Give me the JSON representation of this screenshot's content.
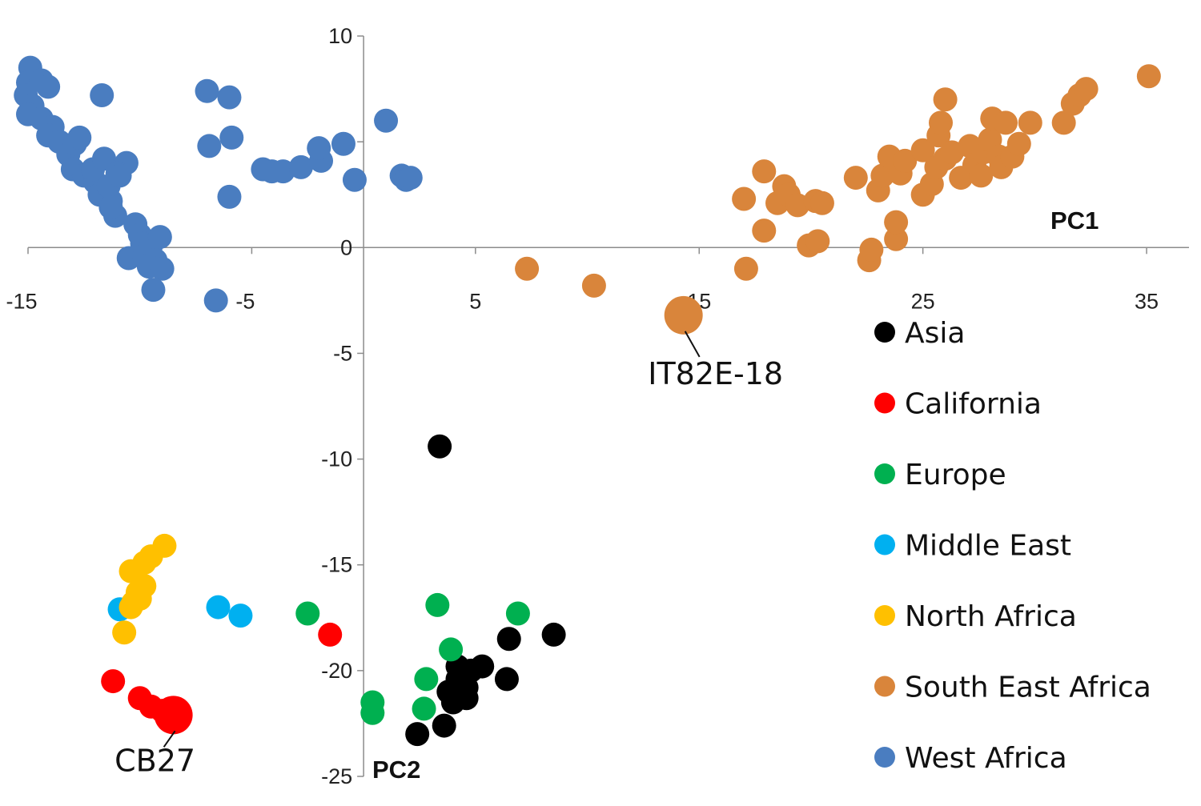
{
  "chart_data": {
    "type": "scatter",
    "title": "",
    "xlabel": "PC1",
    "ylabel": "PC2",
    "xlim": [
      -15,
      36
    ],
    "ylim": [
      -25,
      10
    ],
    "x_ticks": [
      "-15",
      "-5",
      "5",
      "15",
      "25",
      "35"
    ],
    "x_tick_values": [
      -15,
      -5,
      5,
      15,
      25,
      35
    ],
    "y_ticks": [
      "10",
      "5",
      "0",
      "-5",
      "-10",
      "-15",
      "-20",
      "-25"
    ],
    "y_tick_values": [
      10,
      5,
      0,
      -5,
      -10,
      -15,
      -20,
      -25
    ],
    "legend_position": "right",
    "series": [
      {
        "name": "Asia",
        "color": "#000000",
        "points": [
          [
            3.4,
            -9.4
          ],
          [
            2.4,
            -23.0
          ],
          [
            3.6,
            -22.6
          ],
          [
            3.8,
            -21.0
          ],
          [
            4.2,
            -20.4
          ],
          [
            4.3,
            -20.1
          ],
          [
            4.6,
            -21.3
          ],
          [
            4.2,
            -19.8
          ],
          [
            4.6,
            -20.8
          ],
          [
            5.3,
            -19.8
          ],
          [
            6.4,
            -20.4
          ],
          [
            6.5,
            -18.5
          ],
          [
            8.5,
            -18.3
          ],
          [
            4.0,
            -21.5
          ],
          [
            4.8,
            -20.0
          ]
        ]
      },
      {
        "name": "California",
        "color": "#ff0000",
        "points": [
          [
            -11.2,
            -20.5
          ],
          [
            -10.0,
            -21.3
          ],
          [
            -9.5,
            -21.7
          ],
          [
            -9.0,
            -21.9
          ],
          [
            -1.5,
            -18.3
          ]
        ]
      },
      {
        "name": "Europe",
        "color": "#00b050",
        "points": [
          [
            3.3,
            -16.9
          ],
          [
            3.9,
            -19.0
          ],
          [
            6.9,
            -17.3
          ],
          [
            2.8,
            -20.4
          ],
          [
            2.7,
            -21.8
          ],
          [
            0.4,
            -21.5
          ],
          [
            0.4,
            -22.0
          ],
          [
            -2.5,
            -17.3
          ]
        ]
      },
      {
        "name": "Middle East",
        "color": "#00b0f0",
        "points": [
          [
            -10.9,
            -17.1
          ],
          [
            -6.5,
            -17.0
          ],
          [
            -5.5,
            -17.4
          ]
        ]
      },
      {
        "name": "North Africa",
        "color": "#ffc000",
        "points": [
          [
            -8.9,
            -14.1
          ],
          [
            -9.5,
            -14.6
          ],
          [
            -9.8,
            -14.9
          ],
          [
            -10.4,
            -15.3
          ],
          [
            -9.8,
            -16.0
          ],
          [
            -10.1,
            -16.3
          ],
          [
            -10.0,
            -16.6
          ],
          [
            -10.3,
            -16.8
          ],
          [
            -10.4,
            -17.0
          ],
          [
            -10.7,
            -18.2
          ]
        ]
      },
      {
        "name": "South East Africa",
        "color": "#d9853b",
        "points": [
          [
            7.3,
            -1.0
          ],
          [
            10.3,
            -1.8
          ],
          [
            17.0,
            2.3
          ],
          [
            17.1,
            -1.0
          ],
          [
            17.9,
            3.6
          ],
          [
            17.9,
            0.8
          ],
          [
            18.5,
            2.1
          ],
          [
            18.8,
            2.9
          ],
          [
            19.0,
            2.5
          ],
          [
            19.4,
            2.0
          ],
          [
            19.9,
            0.1
          ],
          [
            20.3,
            0.3
          ],
          [
            20.2,
            2.2
          ],
          [
            20.5,
            2.1
          ],
          [
            22.0,
            3.3
          ],
          [
            22.6,
            -0.6
          ],
          [
            22.7,
            -0.1
          ],
          [
            23.0,
            2.7
          ],
          [
            23.2,
            3.4
          ],
          [
            23.5,
            4.3
          ],
          [
            23.8,
            0.4
          ],
          [
            23.8,
            1.2
          ],
          [
            24.0,
            3.5
          ],
          [
            24.2,
            4.1
          ],
          [
            25.0,
            4.6
          ],
          [
            25.0,
            2.5
          ],
          [
            25.4,
            3.0
          ],
          [
            25.6,
            3.8
          ],
          [
            25.7,
            5.3
          ],
          [
            25.8,
            5.9
          ],
          [
            26.0,
            7.0
          ],
          [
            26.0,
            4.2
          ],
          [
            26.3,
            4.5
          ],
          [
            26.7,
            3.3
          ],
          [
            27.1,
            4.8
          ],
          [
            27.3,
            3.9
          ],
          [
            27.6,
            3.4
          ],
          [
            27.7,
            4.5
          ],
          [
            28.0,
            5.1
          ],
          [
            28.1,
            6.1
          ],
          [
            28.4,
            4.3
          ],
          [
            28.5,
            3.8
          ],
          [
            28.7,
            5.9
          ],
          [
            29.0,
            4.3
          ],
          [
            29.3,
            4.9
          ],
          [
            29.8,
            5.9
          ],
          [
            31.3,
            5.9
          ],
          [
            31.7,
            6.8
          ],
          [
            32.0,
            7.2
          ],
          [
            32.3,
            7.5
          ],
          [
            35.1,
            8.1
          ]
        ]
      },
      {
        "name": "West Africa",
        "color": "#4a7dc0",
        "points": [
          [
            -14.9,
            8.5
          ],
          [
            -15.0,
            7.8
          ],
          [
            -15.1,
            7.2
          ],
          [
            -14.8,
            6.7
          ],
          [
            -15.0,
            6.3
          ],
          [
            -14.4,
            7.9
          ],
          [
            -14.1,
            7.6
          ],
          [
            -14.4,
            6.1
          ],
          [
            -13.9,
            5.7
          ],
          [
            -14.1,
            5.3
          ],
          [
            -13.6,
            5.0
          ],
          [
            -13.2,
            4.4
          ],
          [
            -12.9,
            4.9
          ],
          [
            -12.7,
            5.2
          ],
          [
            -13.0,
            3.7
          ],
          [
            -12.5,
            3.4
          ],
          [
            -12.0,
            3.1
          ],
          [
            -12.1,
            3.7
          ],
          [
            -11.6,
            4.2
          ],
          [
            -11.8,
            2.5
          ],
          [
            -11.3,
            2.2
          ],
          [
            -11.4,
            2.9
          ],
          [
            -11.1,
            1.5
          ],
          [
            -11.3,
            1.9
          ],
          [
            -10.6,
            4.0
          ],
          [
            -11.0,
            3.5
          ],
          [
            -10.9,
            3.4
          ],
          [
            -10.2,
            1.1
          ],
          [
            -10.0,
            0.6
          ],
          [
            -9.9,
            0.2
          ],
          [
            -10.5,
            -0.5
          ],
          [
            -9.8,
            -0.4
          ],
          [
            -9.5,
            0.1
          ],
          [
            -9.1,
            0.5
          ],
          [
            -9.3,
            -0.6
          ],
          [
            -9.6,
            -0.9
          ],
          [
            -9.0,
            -1.0
          ],
          [
            -9.4,
            -2.0
          ],
          [
            -11.7,
            7.2
          ],
          [
            -7.0,
            7.4
          ],
          [
            -6.0,
            7.1
          ],
          [
            -6.9,
            4.8
          ],
          [
            -5.9,
            5.2
          ],
          [
            -6.0,
            2.4
          ],
          [
            -6.6,
            -2.5
          ],
          [
            -4.1,
            3.6
          ],
          [
            -4.5,
            3.7
          ],
          [
            -3.6,
            3.6
          ],
          [
            -2.8,
            3.8
          ],
          [
            -1.9,
            4.1
          ],
          [
            -2.0,
            4.7
          ],
          [
            -0.9,
            4.9
          ],
          [
            -0.4,
            3.2
          ],
          [
            1.0,
            6.0
          ],
          [
            1.7,
            3.4
          ],
          [
            1.9,
            3.2
          ],
          [
            2.1,
            3.3
          ]
        ]
      }
    ],
    "annotations": [
      {
        "label": "IT82E-18",
        "x": 14.3,
        "y": -3.2,
        "color": "#d9853b"
      },
      {
        "label": "CB27",
        "x": -8.5,
        "y": -22.1,
        "color": "#ff0000"
      }
    ]
  }
}
